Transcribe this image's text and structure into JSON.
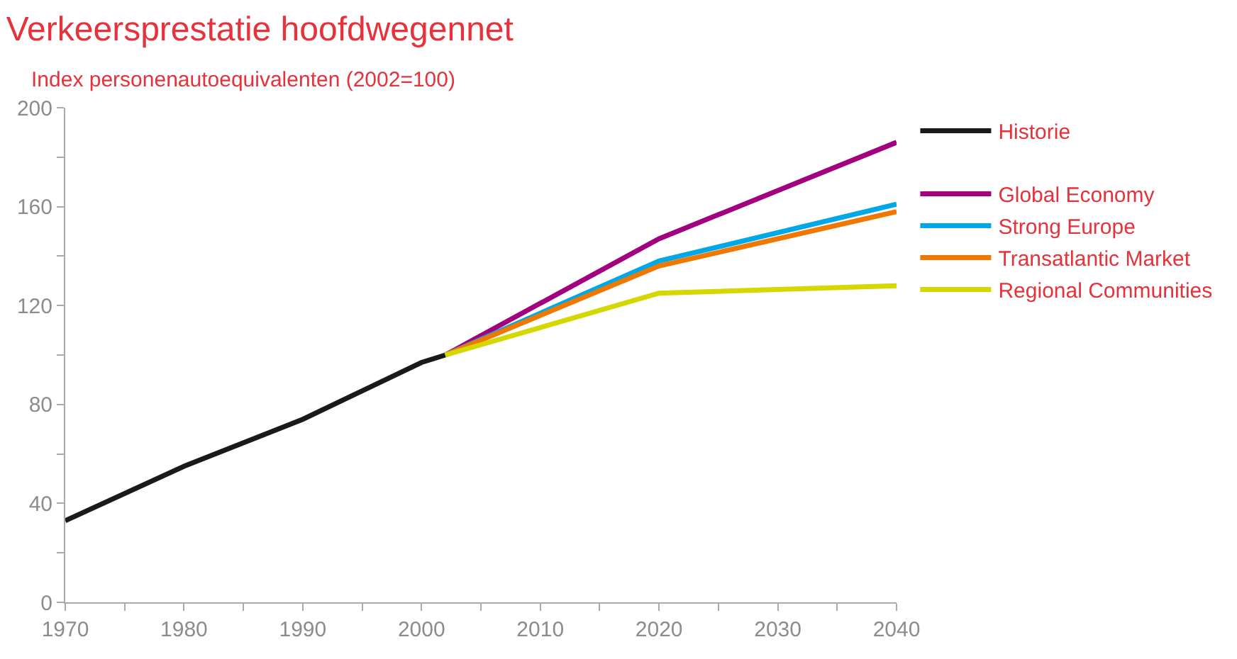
{
  "chart_data": {
    "type": "line",
    "title": "Verkeersprestatie hoofdwegennet",
    "subtitle": "Index personenautoequivalenten (2002=100)",
    "series": [
      {
        "name": "Historie",
        "color": "#1a1a1a",
        "x": [
          1970,
          1980,
          1990,
          2000,
          2002
        ],
        "values": [
          33,
          55,
          74,
          97,
          100
        ]
      },
      {
        "name": "Global Economy",
        "color": "#a3007f",
        "x": [
          2002,
          2020,
          2040
        ],
        "values": [
          100,
          147,
          186
        ]
      },
      {
        "name": "Strong Europe",
        "color": "#00a8e8",
        "x": [
          2002,
          2020,
          2040
        ],
        "values": [
          100,
          138,
          161
        ]
      },
      {
        "name": "Transatlantic Market",
        "color": "#f07800",
        "x": [
          2002,
          2020,
          2040
        ],
        "values": [
          100,
          136,
          158
        ]
      },
      {
        "name": "Regional Communities",
        "color": "#d4d800",
        "x": [
          2002,
          2020,
          2040
        ],
        "values": [
          100,
          125,
          128
        ]
      }
    ],
    "xlim": [
      1970,
      2040
    ],
    "xticks": [
      1970,
      {
        "value": 1975,
        "label": null
      },
      1980,
      {
        "value": 1985,
        "label": null
      },
      1990,
      {
        "value": 1995,
        "label": null
      },
      2000,
      {
        "value": 2005,
        "label": null
      },
      2010,
      {
        "value": 2015,
        "label": null
      },
      2020,
      {
        "value": 2025,
        "label": null
      },
      2030,
      {
        "value": 2035,
        "label": null
      },
      2040
    ],
    "ylim": [
      0,
      200
    ],
    "yticks": [
      0,
      {
        "value": 20,
        "label": null
      },
      40,
      {
        "value": 60,
        "label": null
      },
      80,
      {
        "value": 100,
        "label": null
      },
      120,
      {
        "value": 140,
        "label": null
      },
      160,
      {
        "value": 180,
        "label": null
      },
      200
    ],
    "legend": "top right",
    "marker": "none",
    "line_style": "solid"
  }
}
